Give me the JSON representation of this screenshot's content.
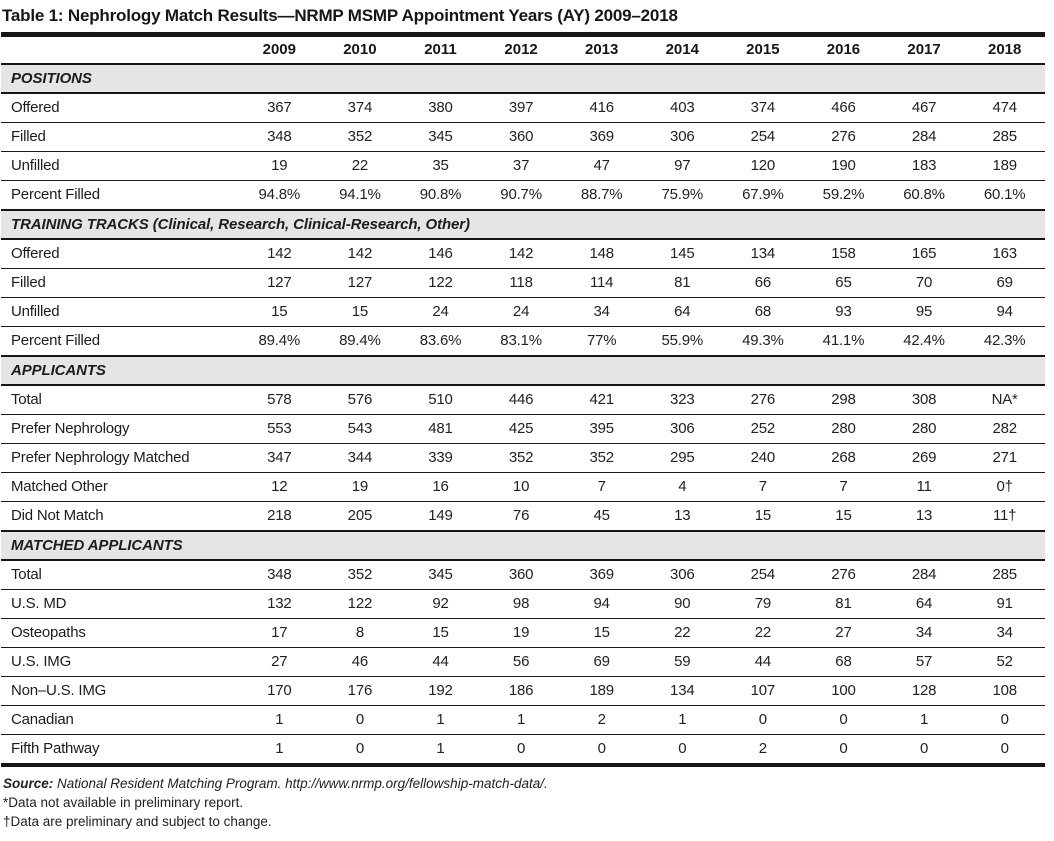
{
  "title": "Table 1: Nephrology Match Results—NRMP MSMP Appointment Years (AY) 2009–2018",
  "colors": {
    "section_band": "#e5e5e5",
    "rule": "#161616",
    "text": "#1c1c1c"
  },
  "chart_data": {
    "type": "table",
    "title": "Table 1: Nephrology Match Results—NRMP MSMP Appointment Years (AY) 2009–2018",
    "columns": [
      "2009",
      "2010",
      "2011",
      "2012",
      "2013",
      "2014",
      "2015",
      "2016",
      "2017",
      "2018"
    ],
    "sections": [
      {
        "header": "POSITIONS",
        "rows": [
          {
            "label": "Offered",
            "values": [
              "367",
              "374",
              "380",
              "397",
              "416",
              "403",
              "374",
              "466",
              "467",
              "474"
            ]
          },
          {
            "label": "Filled",
            "values": [
              "348",
              "352",
              "345",
              "360",
              "369",
              "306",
              "254",
              "276",
              "284",
              "285"
            ]
          },
          {
            "label": "Unfilled",
            "values": [
              "19",
              "22",
              "35",
              "37",
              "47",
              "97",
              "120",
              "190",
              "183",
              "189"
            ]
          },
          {
            "label": "Percent Filled",
            "values": [
              "94.8%",
              "94.1%",
              "90.8%",
              "90.7%",
              "88.7%",
              "75.9%",
              "67.9%",
              "59.2%",
              "60.8%",
              "60.1%"
            ]
          }
        ]
      },
      {
        "header": "TRAINING TRACKS (Clinical, Research, Clinical-Research, Other)",
        "rows": [
          {
            "label": "Offered",
            "values": [
              "142",
              "142",
              "146",
              "142",
              "148",
              "145",
              "134",
              "158",
              "165",
              "163"
            ]
          },
          {
            "label": "Filled",
            "values": [
              "127",
              "127",
              "122",
              "118",
              "114",
              "81",
              "66",
              "65",
              "70",
              "69"
            ]
          },
          {
            "label": "Unfilled",
            "values": [
              "15",
              "15",
              "24",
              "24",
              "34",
              "64",
              "68",
              "93",
              "95",
              "94"
            ]
          },
          {
            "label": "Percent Filled",
            "values": [
              "89.4%",
              "89.4%",
              "83.6%",
              "83.1%",
              "77%",
              "55.9%",
              "49.3%",
              "41.1%",
              "42.4%",
              "42.3%"
            ]
          }
        ]
      },
      {
        "header": "APPLICANTS",
        "rows": [
          {
            "label": "Total",
            "values": [
              "578",
              "576",
              "510",
              "446",
              "421",
              "323",
              "276",
              "298",
              "308",
              "NA*"
            ]
          },
          {
            "label": "Prefer Nephrology",
            "values": [
              "553",
              "543",
              "481",
              "425",
              "395",
              "306",
              "252",
              "280",
              "280",
              "282"
            ]
          },
          {
            "label": "Prefer Nephrology Matched",
            "values": [
              "347",
              "344",
              "339",
              "352",
              "352",
              "295",
              "240",
              "268",
              "269",
              "271"
            ]
          },
          {
            "label": "Matched Other",
            "values": [
              "12",
              "19",
              "16",
              "10",
              "7",
              "4",
              "7",
              "7",
              "11",
              "0†"
            ]
          },
          {
            "label": "Did Not Match",
            "values": [
              "218",
              "205",
              "149",
              "76",
              "45",
              "13",
              "15",
              "15",
              "13",
              "11†"
            ]
          }
        ]
      },
      {
        "header": "MATCHED APPLICANTS",
        "rows": [
          {
            "label": "Total",
            "values": [
              "348",
              "352",
              "345",
              "360",
              "369",
              "306",
              "254",
              "276",
              "284",
              "285"
            ]
          },
          {
            "label": "U.S. MD",
            "values": [
              "132",
              "122",
              "92",
              "98",
              "94",
              "90",
              "79",
              "81",
              "64",
              "91"
            ]
          },
          {
            "label": "Osteopaths",
            "values": [
              "17",
              "8",
              "15",
              "19",
              "15",
              "22",
              "22",
              "27",
              "34",
              "34"
            ]
          },
          {
            "label": "U.S. IMG",
            "values": [
              "27",
              "46",
              "44",
              "56",
              "69",
              "59",
              "44",
              "68",
              "57",
              "52"
            ]
          },
          {
            "label": "Non–U.S. IMG",
            "values": [
              "170",
              "176",
              "192",
              "186",
              "189",
              "134",
              "107",
              "100",
              "128",
              "108"
            ]
          },
          {
            "label": "Canadian",
            "values": [
              "1",
              "0",
              "1",
              "1",
              "2",
              "1",
              "0",
              "0",
              "1",
              "0"
            ]
          },
          {
            "label": "Fifth Pathway",
            "values": [
              "1",
              "0",
              "1",
              "0",
              "0",
              "0",
              "2",
              "0",
              "0",
              "0"
            ]
          }
        ]
      }
    ]
  },
  "footer": {
    "source_label": "Source:",
    "source_text": " National Resident Matching Program. http://www.nrmp.org/fellowship-match-data/.",
    "footnotes": [
      "*Data not available in preliminary report.",
      "†Data are preliminary and subject to change."
    ]
  }
}
